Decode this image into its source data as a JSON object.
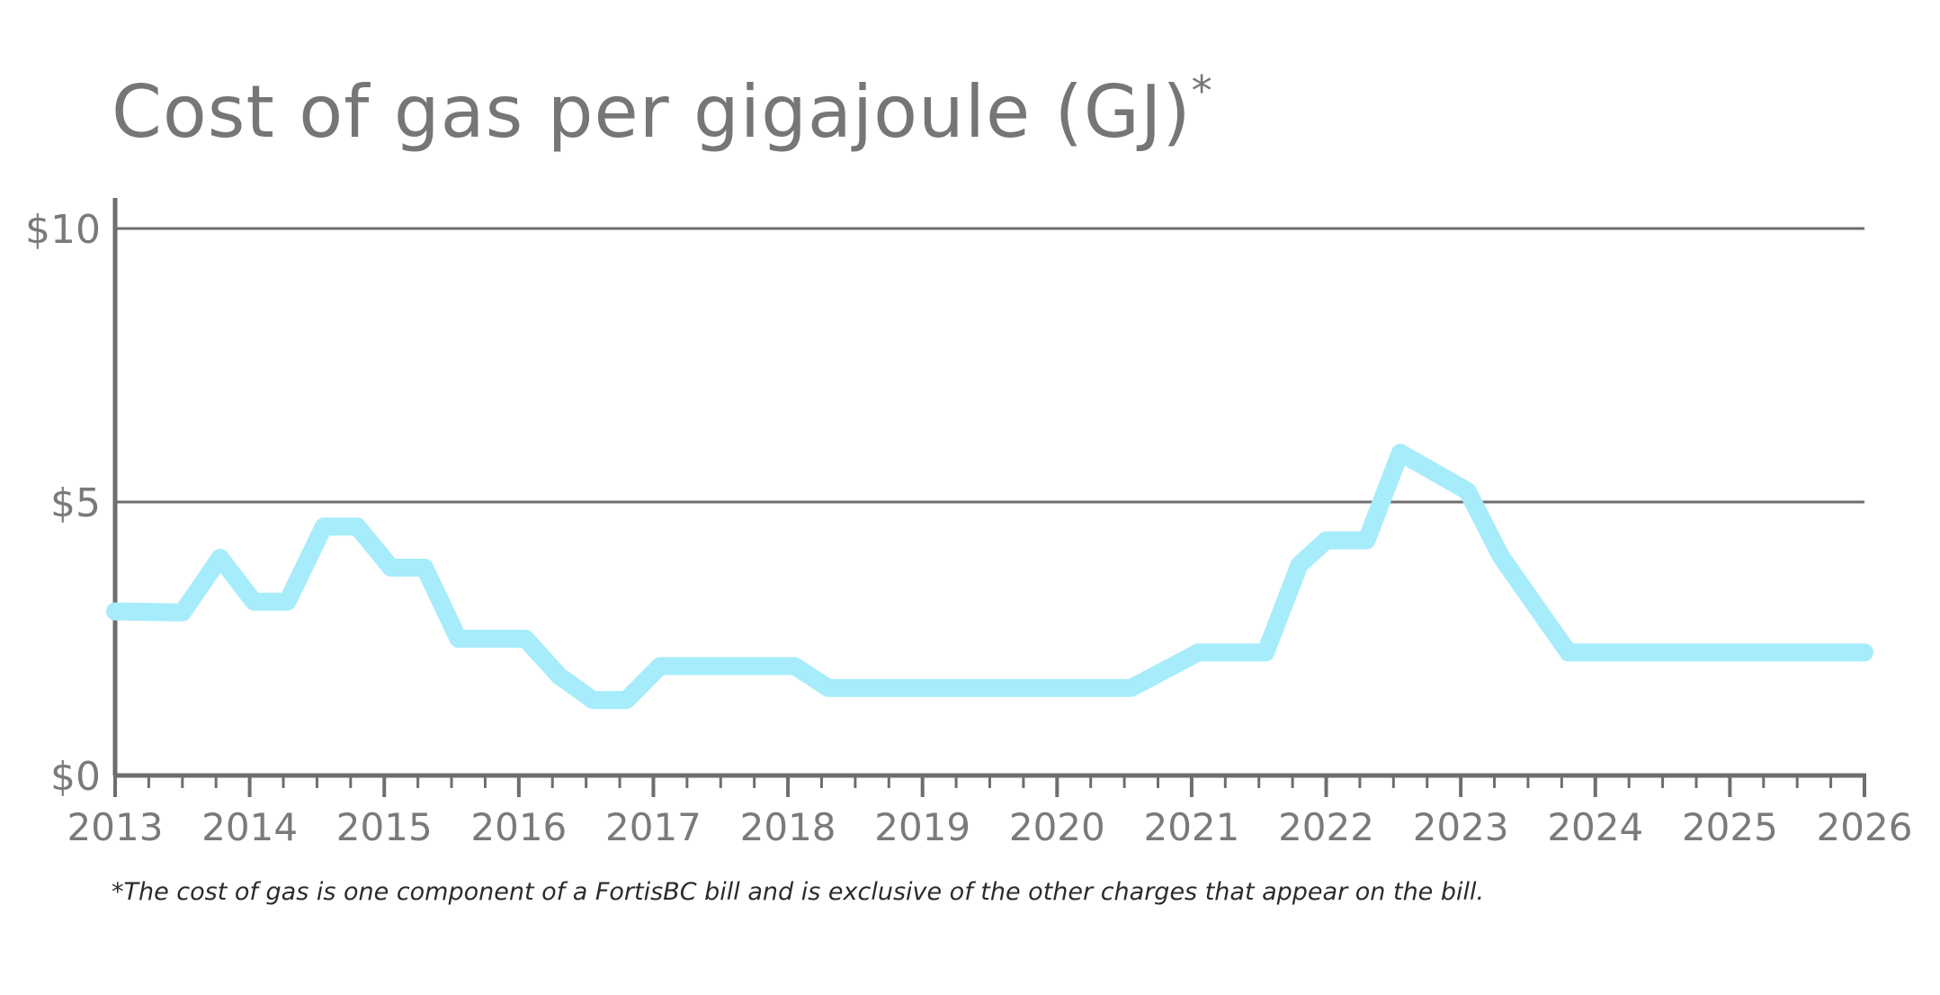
{
  "header": {
    "title": "Cost of gas per gigajoule (GJ)",
    "title_marker": "*"
  },
  "footnote": "*The cost of gas is one component of a FortisBC bill and is exclusive of the other charges that appear on the bill.",
  "colors": {
    "line": "#a7ecfb",
    "axis": "#6e6e6e",
    "text": "#7a7a7a"
  },
  "chart_data": {
    "type": "line",
    "title": "Cost of gas per gigajoule (GJ)",
    "xlabel": "",
    "ylabel": "",
    "xlim": [
      2013,
      2026
    ],
    "ylim": [
      0,
      10
    ],
    "x_ticks": [
      "2013",
      "2014",
      "2015",
      "2016",
      "2017",
      "2018",
      "2019",
      "2020",
      "2021",
      "2022",
      "2023",
      "2024",
      "2025",
      "2026"
    ],
    "y_ticks": [
      {
        "value": 0,
        "label": "$0"
      },
      {
        "value": 5,
        "label": "$5"
      },
      {
        "value": 10,
        "label": "$10"
      }
    ],
    "grid": "horizontal",
    "series": [
      {
        "color": "#a7ecfb",
        "points": [
          [
            2013.0,
            3.0
          ],
          [
            2013.5,
            2.98
          ],
          [
            2013.78,
            3.98
          ],
          [
            2014.03,
            3.18
          ],
          [
            2014.28,
            3.18
          ],
          [
            2014.55,
            4.55
          ],
          [
            2014.8,
            4.55
          ],
          [
            2015.05,
            3.8
          ],
          [
            2015.3,
            3.8
          ],
          [
            2015.55,
            2.5
          ],
          [
            2016.05,
            2.5
          ],
          [
            2016.3,
            1.82
          ],
          [
            2016.55,
            1.38
          ],
          [
            2016.8,
            1.38
          ],
          [
            2017.05,
            2.0
          ],
          [
            2018.05,
            2.0
          ],
          [
            2018.3,
            1.6
          ],
          [
            2020.55,
            1.6
          ],
          [
            2021.05,
            2.25
          ],
          [
            2021.55,
            2.25
          ],
          [
            2021.8,
            3.85
          ],
          [
            2022.0,
            4.3
          ],
          [
            2022.3,
            4.3
          ],
          [
            2022.55,
            5.9
          ],
          [
            2023.05,
            5.2
          ],
          [
            2023.3,
            4.0
          ],
          [
            2023.8,
            2.25
          ],
          [
            2026.0,
            2.25
          ]
        ]
      }
    ]
  }
}
